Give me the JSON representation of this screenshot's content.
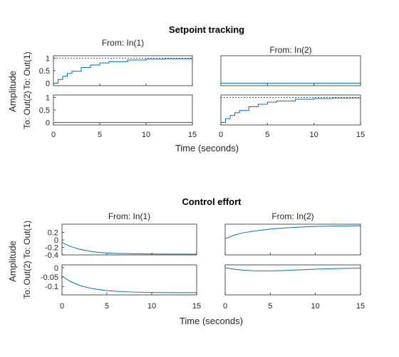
{
  "chart_data": [
    {
      "type": "line",
      "title": "Setpoint tracking",
      "column_titles": [
        "From: In(1)",
        "From: In(2)"
      ],
      "row_titles": [
        "To: Out(1)",
        "To: Out(2)"
      ],
      "xlabel": "Time (seconds)",
      "ylabel": "Amplitude",
      "xlim": [
        0,
        15
      ],
      "xticks": [
        "0",
        "5",
        "10",
        "15"
      ],
      "series_color": "#0072BD",
      "steps": true,
      "rows": [
        {
          "ylim": [
            -0.1,
            1.1
          ],
          "yticks": [
            {
              "v": 1,
              "label": "1"
            },
            {
              "v": 0.5,
              "label": "0.5"
            },
            {
              "v": 0,
              "label": "0"
            }
          ],
          "cells": [
            {
              "reference": 1,
              "x": [
                0,
                0.5,
                1,
                1.5,
                2,
                3,
                4,
                5,
                6,
                8,
                10,
                12,
                15
              ],
              "y": [
                0,
                0.15,
                0.28,
                0.39,
                0.48,
                0.63,
                0.73,
                0.81,
                0.86,
                0.93,
                0.96,
                0.98,
                0.99
              ]
            },
            {
              "reference": null,
              "x": [
                0,
                15
              ],
              "y": [
                0,
                0
              ]
            }
          ]
        },
        {
          "ylim": [
            -0.1,
            1.1
          ],
          "yticks": [
            {
              "v": 1,
              "label": "1"
            },
            {
              "v": 0.5,
              "label": "0.5"
            },
            {
              "v": 0,
              "label": "0"
            }
          ],
          "cells": [
            {
              "reference": null,
              "x": [
                0,
                15
              ],
              "y": [
                0,
                0
              ]
            },
            {
              "reference": 1,
              "x": [
                0,
                0.5,
                1,
                1.5,
                2,
                3,
                4,
                5,
                6,
                8,
                10,
                12,
                15
              ],
              "y": [
                0,
                0.15,
                0.28,
                0.39,
                0.48,
                0.63,
                0.73,
                0.81,
                0.86,
                0.93,
                0.96,
                0.98,
                0.99
              ]
            }
          ]
        }
      ]
    },
    {
      "type": "line",
      "title": "Control effort",
      "column_titles": [
        "From: In(1)",
        "From: In(2)"
      ],
      "row_titles": [
        "To: Out(1)",
        "To: Out(2)"
      ],
      "xlabel": "Time (seconds)",
      "ylabel": "Amplitude",
      "xlim": [
        0,
        15
      ],
      "xticks": [
        "0",
        "5",
        "10",
        "15"
      ],
      "series_color": "#0072BD",
      "steps": false,
      "rows": [
        {
          "ylim": [
            -0.4,
            0.42
          ],
          "yticks": [
            {
              "v": 0.2,
              "label": "0.2"
            },
            {
              "v": 0,
              "label": "0"
            },
            {
              "v": -0.2,
              "label": "-0.2"
            },
            {
              "v": -0.4,
              "label": "-0.4"
            }
          ],
          "cells": [
            {
              "reference": null,
              "x": [
                0,
                1,
                2,
                3,
                4,
                5,
                6,
                8,
                10,
                12,
                15
              ],
              "y": [
                -0.07,
                -0.18,
                -0.25,
                -0.3,
                -0.33,
                -0.35,
                -0.36,
                -0.37,
                -0.375,
                -0.378,
                -0.38
              ]
            },
            {
              "reference": null,
              "x": [
                0,
                1,
                2,
                3,
                4,
                5,
                6,
                8,
                10,
                12,
                15
              ],
              "y": [
                0.03,
                0.13,
                0.19,
                0.23,
                0.26,
                0.29,
                0.31,
                0.34,
                0.36,
                0.37,
                0.38
              ]
            }
          ]
        },
        {
          "ylim": [
            -0.145,
            0.015
          ],
          "yticks": [
            {
              "v": 0,
              "label": "0"
            },
            {
              "v": -0.05,
              "label": "-0.05"
            },
            {
              "v": -0.1,
              "label": "-0.1"
            }
          ],
          "cells": [
            {
              "reference": null,
              "x": [
                0,
                1,
                2,
                3,
                4,
                5,
                6,
                8,
                10,
                12,
                15
              ],
              "y": [
                -0.045,
                -0.075,
                -0.095,
                -0.108,
                -0.116,
                -0.122,
                -0.126,
                -0.13,
                -0.132,
                -0.133,
                -0.133
              ]
            },
            {
              "reference": null,
              "x": [
                0,
                1,
                2,
                3,
                4,
                5,
                6,
                8,
                10,
                12,
                15
              ],
              "y": [
                0,
                -0.008,
                -0.013,
                -0.016,
                -0.017,
                -0.017,
                -0.016,
                -0.012,
                -0.008,
                -0.005,
                -0.002
              ]
            }
          ]
        }
      ]
    }
  ]
}
